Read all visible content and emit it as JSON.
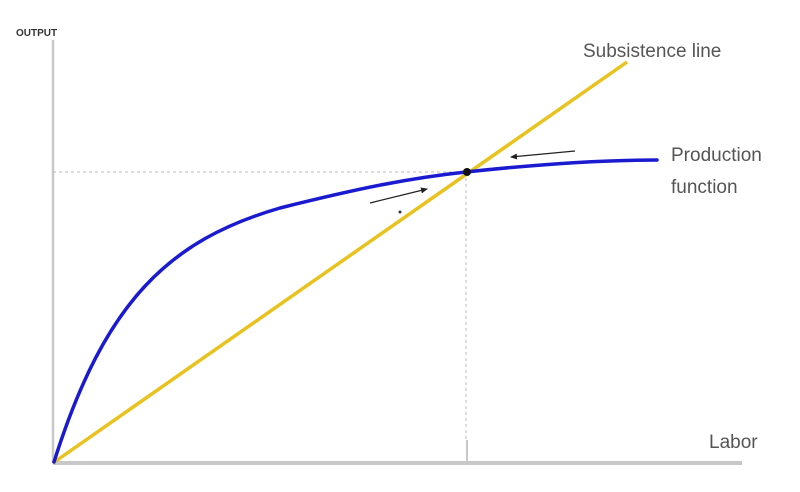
{
  "labels": {
    "y_axis": "OUTPUT",
    "x_axis": "Labor",
    "subsistence": "Subsistence line",
    "production_line1": "Production",
    "production_line2": "function"
  },
  "colors": {
    "production_curve": "#1a1ad0",
    "subsistence_line": "#e8c21e",
    "axes": "#c8c8c8",
    "guides": "#bbbbbb",
    "arrows": "#333333"
  }
}
